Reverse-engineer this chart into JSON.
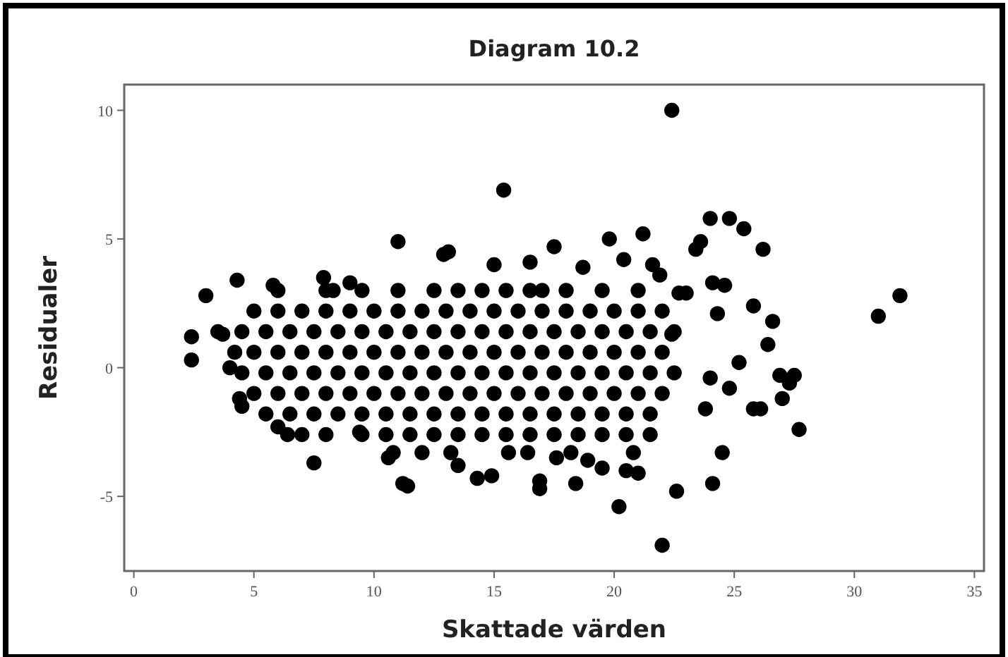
{
  "chart_data": {
    "type": "scatter",
    "title": "Diagram 10.2",
    "xlabel": "Skattade värden",
    "ylabel": "Residualer",
    "xlim": [
      -0.4,
      35.4
    ],
    "ylim": [
      -7.9,
      11
    ],
    "xticks": [
      0,
      5,
      10,
      15,
      20,
      25,
      30,
      35
    ],
    "yticks": [
      -5,
      0,
      5,
      10
    ],
    "grid": false,
    "marker": "circle",
    "series": [
      {
        "color": "#000000",
        "x": [
          6,
          8,
          9.5,
          11,
          12.5,
          13.5,
          14.5,
          15.5,
          16.5,
          17,
          18,
          19.5,
          21,
          5,
          6,
          7,
          8,
          9,
          10,
          11,
          12,
          13,
          14,
          15,
          16,
          17,
          18,
          19,
          20,
          21,
          22,
          4.5,
          5.5,
          6.5,
          7.5,
          8.5,
          9.5,
          10.5,
          11.5,
          12.5,
          13.5,
          14.5,
          15.5,
          16.5,
          17.5,
          18.5,
          19.5,
          20.5,
          21.5,
          22.5,
          5,
          6,
          7,
          8,
          9,
          10,
          11,
          12,
          13,
          14,
          15,
          16,
          17,
          18,
          19,
          20,
          21,
          22,
          4.5,
          5.5,
          6.5,
          7.5,
          8.5,
          9.5,
          10.5,
          11.5,
          12.5,
          13.5,
          14.5,
          15.5,
          16.5,
          17.5,
          18.5,
          19.5,
          20.5,
          21.5,
          22.5,
          5,
          6,
          7,
          8,
          9,
          10,
          11,
          12,
          13,
          14,
          15,
          16,
          17,
          18,
          19,
          20,
          21,
          22,
          5.5,
          6.5,
          7.5,
          8.5,
          9.5,
          10.5,
          11.5,
          12.5,
          13.5,
          14.5,
          15.5,
          16.5,
          17.5,
          18.5,
          19.5,
          20.5,
          21.5,
          7,
          8,
          9.5,
          10.5,
          11.5,
          12.5,
          13.5,
          14.5,
          15.5,
          16.5,
          17.5,
          18.5,
          19.5,
          20.5,
          21.5,
          10.8,
          12,
          13.2,
          15.6,
          16.4,
          18.2,
          20.8,
          22.4,
          15.4,
          2.4,
          2.4,
          3.0,
          3.5,
          3.7,
          4.3,
          4.2,
          4.0,
          4.4,
          4.5,
          5.8,
          6.0,
          6.4,
          7.5,
          7.9,
          11.0,
          11.2,
          11.4,
          12.9,
          13.1,
          14.3,
          14.9,
          15.0,
          16.9,
          16.9,
          17.5,
          18.4,
          19.8,
          20.2,
          21.2,
          22.0,
          22.6,
          23.4,
          23.6,
          24.0,
          24.8,
          25.4,
          26.2,
          24.1,
          24.5,
          27.7,
          31.0,
          31.9,
          25.8,
          26.6,
          26.4,
          26.1,
          25.8,
          27.0,
          27.3,
          27.5,
          26.9,
          25.2,
          24.0,
          24.8,
          23.8,
          23.0,
          22.7,
          24.3,
          24.6,
          24.1,
          22.4,
          20.5,
          21.0,
          19.5,
          18.9,
          17.6,
          13.5,
          10.6,
          9.4,
          8.3,
          9.0,
          16.5,
          18.7,
          20.4,
          21.6,
          21.9
        ],
        "values": [
          3,
          3,
          3,
          3,
          3,
          3,
          3,
          3,
          3,
          3,
          3,
          3,
          3,
          2.2,
          2.2,
          2.2,
          2.2,
          2.2,
          2.2,
          2.2,
          2.2,
          2.2,
          2.2,
          2.2,
          2.2,
          2.2,
          2.2,
          2.2,
          2.2,
          2.2,
          2.2,
          1.4,
          1.4,
          1.4,
          1.4,
          1.4,
          1.4,
          1.4,
          1.4,
          1.4,
          1.4,
          1.4,
          1.4,
          1.4,
          1.4,
          1.4,
          1.4,
          1.4,
          1.4,
          1.4,
          0.6,
          0.6,
          0.6,
          0.6,
          0.6,
          0.6,
          0.6,
          0.6,
          0.6,
          0.6,
          0.6,
          0.6,
          0.6,
          0.6,
          0.6,
          0.6,
          0.6,
          0.6,
          -0.2,
          -0.2,
          -0.2,
          -0.2,
          -0.2,
          -0.2,
          -0.2,
          -0.2,
          -0.2,
          -0.2,
          -0.2,
          -0.2,
          -0.2,
          -0.2,
          -0.2,
          -0.2,
          -0.2,
          -0.2,
          -0.2,
          -1,
          -1,
          -1,
          -1,
          -1,
          -1,
          -1,
          -1,
          -1,
          -1,
          -1,
          -1,
          -1,
          -1,
          -1,
          -1,
          -1,
          -1,
          -1.8,
          -1.8,
          -1.8,
          -1.8,
          -1.8,
          -1.8,
          -1.8,
          -1.8,
          -1.8,
          -1.8,
          -1.8,
          -1.8,
          -1.8,
          -1.8,
          -1.8,
          -1.8,
          -1.8,
          -2.6,
          -2.6,
          -2.6,
          -2.6,
          -2.6,
          -2.6,
          -2.6,
          -2.6,
          -2.6,
          -2.6,
          -2.6,
          -2.6,
          -2.6,
          -2.6,
          -2.6,
          -3.3,
          -3.3,
          -3.3,
          -3.3,
          -3.3,
          -3.3,
          -3.3,
          10.0,
          6.9,
          1.2,
          0.3,
          2.8,
          1.4,
          1.3,
          3.4,
          0.6,
          0.0,
          -1.2,
          -1.5,
          3.2,
          -2.3,
          -2.6,
          -3.7,
          3.5,
          4.9,
          -4.5,
          -4.6,
          4.4,
          4.5,
          -4.3,
          -4.2,
          4.0,
          -4.7,
          -4.4,
          4.7,
          -4.5,
          5.0,
          -5.4,
          5.2,
          -6.9,
          -4.8,
          4.6,
          4.9,
          5.8,
          5.8,
          5.4,
          4.6,
          -4.5,
          -3.3,
          -2.4,
          2.0,
          2.8,
          2.4,
          1.8,
          0.9,
          -1.6,
          -1.6,
          -1.2,
          -0.6,
          -0.3,
          -0.3,
          0.2,
          -0.4,
          -0.8,
          -1.6,
          2.9,
          2.9,
          2.1,
          3.2,
          3.3,
          1.3,
          -4.0,
          -4.1,
          -3.9,
          -3.6,
          -3.5,
          -3.8,
          -3.5,
          -2.5,
          3.0,
          3.3,
          4.1,
          3.9,
          4.2,
          4.0,
          3.6
        ]
      }
    ]
  }
}
